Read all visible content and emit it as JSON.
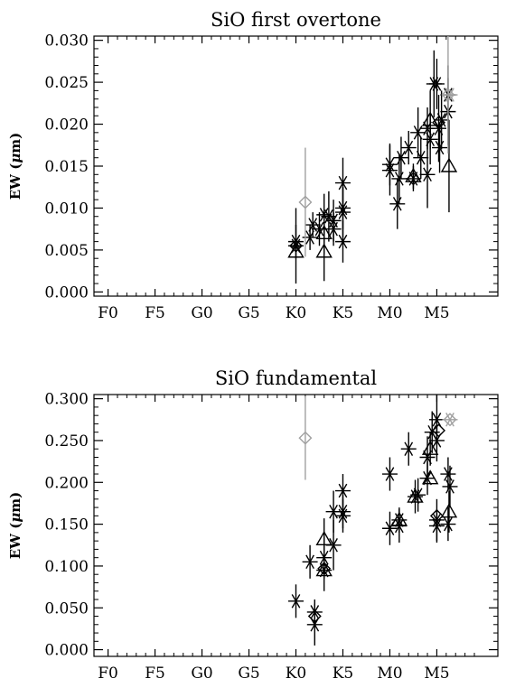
{
  "colors": {
    "black": "#000000",
    "gray": "#a0a0a0"
  },
  "chart_data": [
    {
      "type": "scatter",
      "title": "SiO first overtone",
      "ylabel": "EW (μm)",
      "ylabel_html": "EW (<tspan font-style='italic'>μ</tspan>m)",
      "x_ticks": [
        "F0",
        "F5",
        "G0",
        "G5",
        "K0",
        "K5",
        "M0",
        "M5"
      ],
      "x_tick_values": [
        0,
        5,
        10,
        15,
        20,
        25,
        30,
        35
      ],
      "xlim": [
        -1.5,
        41.5
      ],
      "ylim": [
        -0.0005,
        0.0305
      ],
      "y_ticks": [
        "0.000",
        "0.005",
        "0.010",
        "0.015",
        "0.020",
        "0.025",
        "0.030"
      ],
      "y_tick_values": [
        0.0,
        0.005,
        0.01,
        0.015,
        0.02,
        0.025,
        0.03
      ],
      "grid": false,
      "series": [
        {
          "marker": "asterisk",
          "color": "#000000",
          "points": [
            {
              "x": 20.0,
              "y": 0.0055,
              "err": 0.0045
            },
            {
              "x": 20.0,
              "y": 0.006,
              "err": 0.002
            },
            {
              "x": 21.5,
              "y": 0.0065,
              "err": 0.0015
            },
            {
              "x": 21.8,
              "y": 0.008,
              "err": 0.0015
            },
            {
              "x": 22.5,
              "y": 0.0075,
              "err": 0.002
            },
            {
              "x": 23.0,
              "y": 0.0092,
              "err": 0.0025
            },
            {
              "x": 23.5,
              "y": 0.009,
              "err": 0.003
            },
            {
              "x": 24.0,
              "y": 0.0075,
              "err": 0.002
            },
            {
              "x": 24.0,
              "y": 0.0085,
              "err": 0.0025
            },
            {
              "x": 25.0,
              "y": 0.0095,
              "err": 0.003
            },
            {
              "x": 25.0,
              "y": 0.01,
              "err": 0.0025
            },
            {
              "x": 25.0,
              "y": 0.013,
              "err": 0.003
            },
            {
              "x": 25.0,
              "y": 0.006,
              "err": 0.0025
            },
            {
              "x": 30.0,
              "y": 0.0145,
              "err": 0.003
            },
            {
              "x": 30.0,
              "y": 0.0152,
              "err": 0.0025
            },
            {
              "x": 30.8,
              "y": 0.0105,
              "err": 0.003
            },
            {
              "x": 31.0,
              "y": 0.0135,
              "err": 0.003
            },
            {
              "x": 31.2,
              "y": 0.016,
              "err": 0.0025
            },
            {
              "x": 32.0,
              "y": 0.0172,
              "err": 0.002
            },
            {
              "x": 32.5,
              "y": 0.0135,
              "err": 0.0015
            },
            {
              "x": 33.0,
              "y": 0.019,
              "err": 0.003
            },
            {
              "x": 33.3,
              "y": 0.016,
              "err": 0.0025
            },
            {
              "x": 34.0,
              "y": 0.0195,
              "err": 0.0025
            },
            {
              "x": 34.0,
              "y": 0.014,
              "err": 0.004
            },
            {
              "x": 34.3,
              "y": 0.0182,
              "err": 0.003
            },
            {
              "x": 34.7,
              "y": 0.0248,
              "err": 0.004
            },
            {
              "x": 35.0,
              "y": 0.0248,
              "err": 0.003
            },
            {
              "x": 35.2,
              "y": 0.0195,
              "err": 0.004
            },
            {
              "x": 35.3,
              "y": 0.0172,
              "err": 0.003
            },
            {
              "x": 35.5,
              "y": 0.0205,
              "err": 0.0035
            },
            {
              "x": 36.2,
              "y": 0.0215,
              "err": 0.004
            },
            {
              "x": 36.2,
              "y": 0.0235,
              "err": 0.0035
            }
          ]
        },
        {
          "marker": "triangle",
          "color": "#000000",
          "points": [
            {
              "x": 20.0,
              "y": 0.0048,
              "err": 0.0
            },
            {
              "x": 23.0,
              "y": 0.0048,
              "err": 0.0035
            },
            {
              "x": 23.0,
              "y": 0.007,
              "err": 0.0025
            },
            {
              "x": 32.5,
              "y": 0.0138,
              "err": 0.0015
            },
            {
              "x": 34.3,
              "y": 0.0205,
              "err": 0.0035
            },
            {
              "x": 36.3,
              "y": 0.015,
              "err": 0.0055
            }
          ]
        },
        {
          "marker": "diamond",
          "color": "#000000",
          "points": [
            {
              "x": 20.0,
              "y": 0.0055,
              "err": 0.0
            },
            {
              "x": 32.5,
              "y": 0.0135,
              "err": 0.0
            },
            {
              "x": 35.2,
              "y": 0.0202,
              "err": 0.0
            }
          ]
        },
        {
          "marker": "diamond",
          "color": "#a0a0a0",
          "points": [
            {
              "x": 21.0,
              "y": 0.0107,
              "err": 0.0065
            },
            {
              "x": 36.2,
              "y": 0.0235,
              "err": 0.007
            }
          ]
        },
        {
          "marker": "asterisk",
          "color": "#a0a0a0",
          "points": [
            {
              "x": 36.4,
              "y": 0.0235,
              "err": 0.0
            }
          ]
        }
      ]
    },
    {
      "type": "scatter",
      "title": "SiO fundamental",
      "ylabel": "EW (μm)",
      "ylabel_html": "EW (<tspan font-style='italic'>μ</tspan>m)",
      "x_ticks": [
        "F0",
        "F5",
        "G0",
        "G5",
        "K0",
        "K5",
        "M0",
        "M5"
      ],
      "x_tick_values": [
        0,
        5,
        10,
        15,
        20,
        25,
        30,
        35
      ],
      "xlim": [
        -1.5,
        41.5
      ],
      "ylim": [
        -0.008,
        0.305
      ],
      "y_ticks": [
        "0.000",
        "0.050",
        "0.100",
        "0.150",
        "0.200",
        "0.250",
        "0.300"
      ],
      "y_tick_values": [
        0.0,
        0.05,
        0.1,
        0.15,
        0.2,
        0.25,
        0.3
      ],
      "grid": false,
      "series": [
        {
          "marker": "asterisk",
          "color": "#000000",
          "points": [
            {
              "x": 20.0,
              "y": 0.058,
              "err": 0.02
            },
            {
              "x": 21.5,
              "y": 0.105,
              "err": 0.02
            },
            {
              "x": 22.0,
              "y": 0.045,
              "err": 0.015
            },
            {
              "x": 22.0,
              "y": 0.03,
              "err": 0.025
            },
            {
              "x": 23.0,
              "y": 0.11,
              "err": 0.025
            },
            {
              "x": 23.0,
              "y": 0.095,
              "err": 0.025
            },
            {
              "x": 24.0,
              "y": 0.125,
              "err": 0.03
            },
            {
              "x": 24.0,
              "y": 0.165,
              "err": 0.025
            },
            {
              "x": 25.0,
              "y": 0.16,
              "err": 0.02
            },
            {
              "x": 25.0,
              "y": 0.165,
              "err": 0.02
            },
            {
              "x": 25.0,
              "y": 0.19,
              "err": 0.02
            },
            {
              "x": 30.0,
              "y": 0.21,
              "err": 0.02
            },
            {
              "x": 30.0,
              "y": 0.145,
              "err": 0.02
            },
            {
              "x": 31.0,
              "y": 0.155,
              "err": 0.015
            },
            {
              "x": 31.0,
              "y": 0.148,
              "err": 0.02
            },
            {
              "x": 32.0,
              "y": 0.24,
              "err": 0.02
            },
            {
              "x": 32.7,
              "y": 0.183,
              "err": 0.02
            },
            {
              "x": 33.0,
              "y": 0.185,
              "err": 0.02
            },
            {
              "x": 34.0,
              "y": 0.23,
              "err": 0.025
            },
            {
              "x": 34.0,
              "y": 0.205,
              "err": 0.02
            },
            {
              "x": 34.5,
              "y": 0.26,
              "err": 0.025
            },
            {
              "x": 35.0,
              "y": 0.275,
              "err": 0.03
            },
            {
              "x": 35.0,
              "y": 0.25,
              "err": 0.025
            },
            {
              "x": 35.0,
              "y": 0.155,
              "err": 0.025
            },
            {
              "x": 35.0,
              "y": 0.148,
              "err": 0.02
            },
            {
              "x": 36.2,
              "y": 0.21,
              "err": 0.02
            },
            {
              "x": 36.2,
              "y": 0.15,
              "err": 0.02
            },
            {
              "x": 36.4,
              "y": 0.195,
              "err": 0.025
            }
          ]
        },
        {
          "marker": "triangle",
          "color": "#000000",
          "points": [
            {
              "x": 23.0,
              "y": 0.132,
              "err": 0.025
            },
            {
              "x": 23.0,
              "y": 0.095,
              "err": 0.0
            },
            {
              "x": 31.0,
              "y": 0.155,
              "err": 0.0
            },
            {
              "x": 32.7,
              "y": 0.183,
              "err": 0.0
            },
            {
              "x": 34.3,
              "y": 0.24,
              "err": 0.02
            },
            {
              "x": 34.3,
              "y": 0.205,
              "err": 0.0
            },
            {
              "x": 36.3,
              "y": 0.165,
              "err": 0.025
            }
          ]
        },
        {
          "marker": "diamond",
          "color": "#000000",
          "points": [
            {
              "x": 22.0,
              "y": 0.04,
              "err": 0.0
            },
            {
              "x": 23.0,
              "y": 0.097,
              "err": 0.0
            },
            {
              "x": 35.2,
              "y": 0.262,
              "err": 0.0
            },
            {
              "x": 35.0,
              "y": 0.16,
              "err": 0.0
            }
          ]
        },
        {
          "marker": "diamond",
          "color": "#a0a0a0",
          "points": [
            {
              "x": 21.0,
              "y": 0.253,
              "err": 0.05
            },
            {
              "x": 36.4,
              "y": 0.275,
              "err": 0.0
            }
          ]
        },
        {
          "marker": "asterisk",
          "color": "#a0a0a0",
          "points": [
            {
              "x": 36.4,
              "y": 0.275,
              "err": 0.0
            }
          ]
        }
      ]
    }
  ]
}
